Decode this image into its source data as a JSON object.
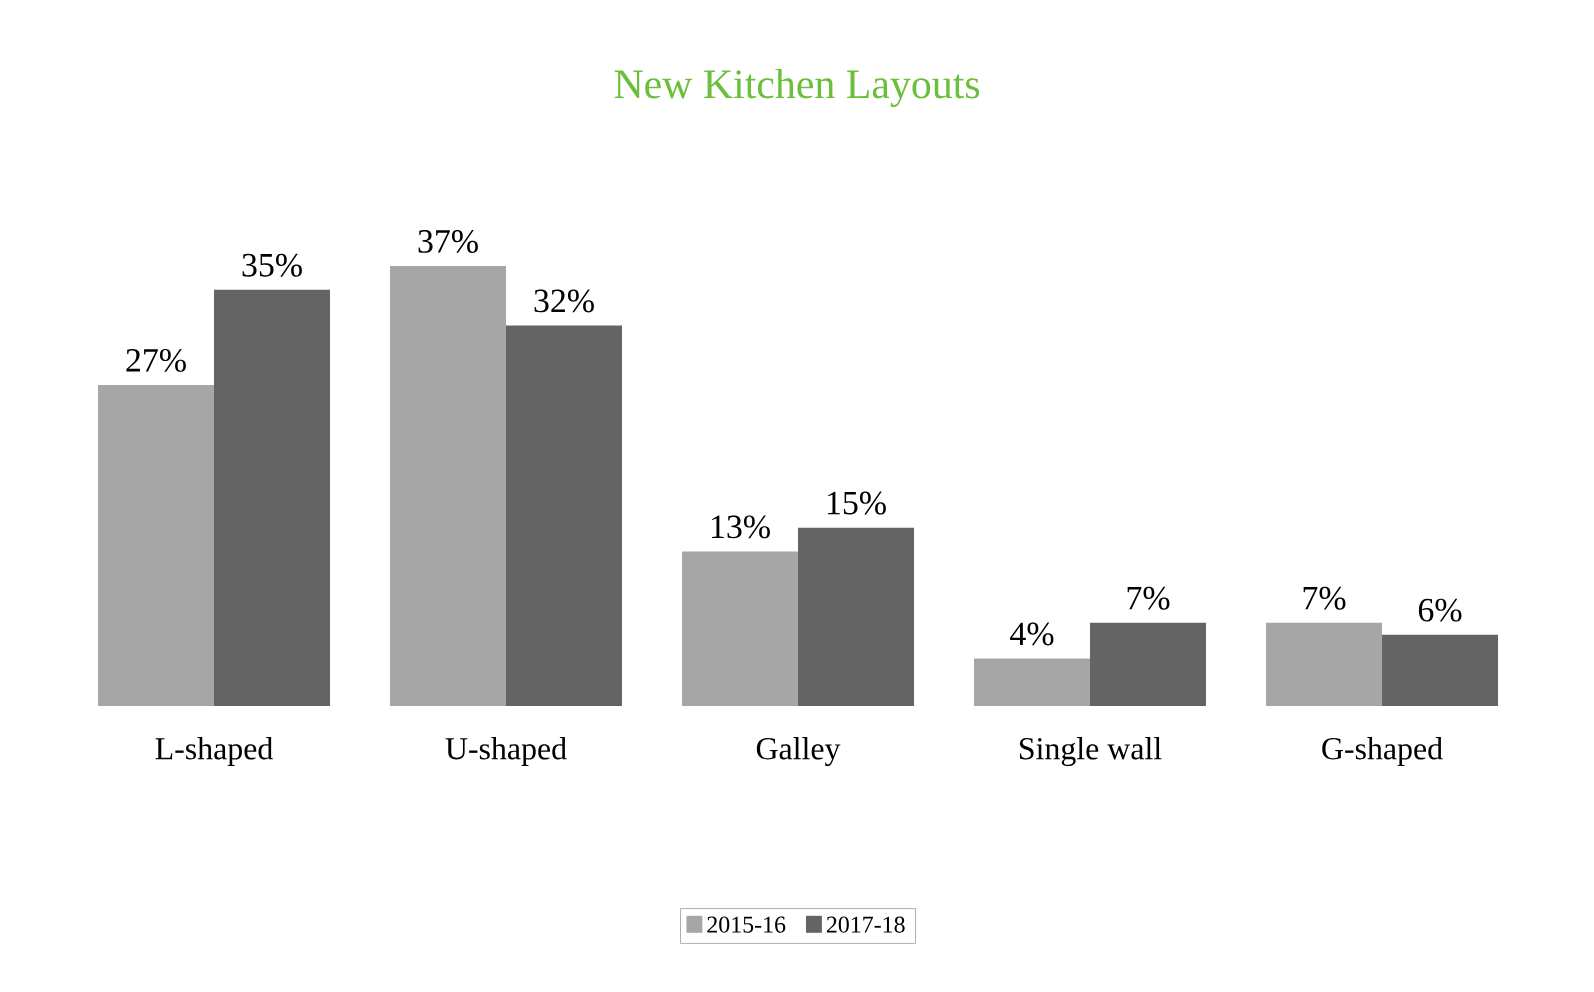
{
  "chart_data": {
    "type": "bar",
    "title": "New Kitchen Layouts",
    "categories": [
      "L-shaped",
      "U-shaped",
      "Galley",
      "Single wall",
      "G-shaped"
    ],
    "series": [
      {
        "name": "2015-16",
        "color": "#a6a6a6",
        "values": [
          27,
          37,
          13,
          4,
          7
        ],
        "value_labels": [
          "27%",
          "37%",
          "13%",
          "4%",
          "7%"
        ]
      },
      {
        "name": "2017-18",
        "color": "#646464",
        "values": [
          35,
          32,
          15,
          7,
          6
        ],
        "value_labels": [
          "35%",
          "32%",
          "15%",
          "7%",
          "6%"
        ]
      }
    ],
    "legend": "bottom"
  }
}
